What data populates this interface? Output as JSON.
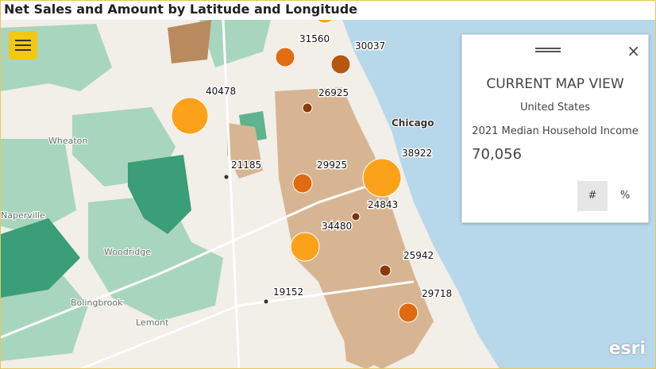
{
  "title": "Net Sales and Amount by Latitude and Longitude",
  "places": [
    "Chicago",
    "Wheaton",
    "Naperville",
    "Woodridge",
    "Bolingbrook",
    "Lemont"
  ],
  "points": [
    {
      "label": 31560
    },
    {
      "label": 30037
    },
    {
      "label": 40478
    },
    {
      "label": 26925
    },
    {
      "label": 38922
    },
    {
      "label": 21185
    },
    {
      "label": 29925
    },
    {
      "label": 24843
    },
    {
      "label": 34480
    },
    {
      "label": 25942
    },
    {
      "label": 19152
    },
    {
      "label": 29718
    }
  ],
  "panel": {
    "heading": "CURRENT MAP VIEW",
    "region": "United States",
    "variable": "2021 Median Household Income",
    "value": "70,056",
    "toggle_count": "#",
    "toggle_percent": "%"
  },
  "attribution": "esri"
}
